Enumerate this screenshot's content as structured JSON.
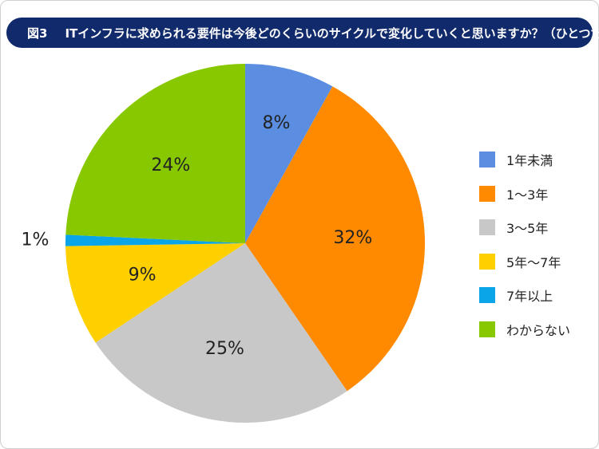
{
  "title": {
    "figure_label": "図3",
    "text": "ITインフラに求められる要件は今後どのくらいのサイクルで変化していくと思いますか？（ひとつだけ）"
  },
  "chart_data": {
    "type": "pie",
    "start_angle_deg": 0,
    "direction": "clockwise",
    "legend_position": "right",
    "slices": [
      {
        "label": "1年未満",
        "value": 8,
        "value_label": "8%",
        "color": "#5b8ee0"
      },
      {
        "label": "1〜3年",
        "value": 32,
        "value_label": "32%",
        "color": "#ff8a00"
      },
      {
        "label": "3〜5年",
        "value": 25,
        "value_label": "25%",
        "color": "#c8c8c8"
      },
      {
        "label": "5年〜7年",
        "value": 9,
        "value_label": "9%",
        "color": "#ffd000"
      },
      {
        "label": "7年以上",
        "value": 1,
        "value_label": "1%",
        "color": "#0aa4e8"
      },
      {
        "label": "わからない",
        "value": 24,
        "value_label": "24%",
        "color": "#88c800"
      }
    ]
  }
}
